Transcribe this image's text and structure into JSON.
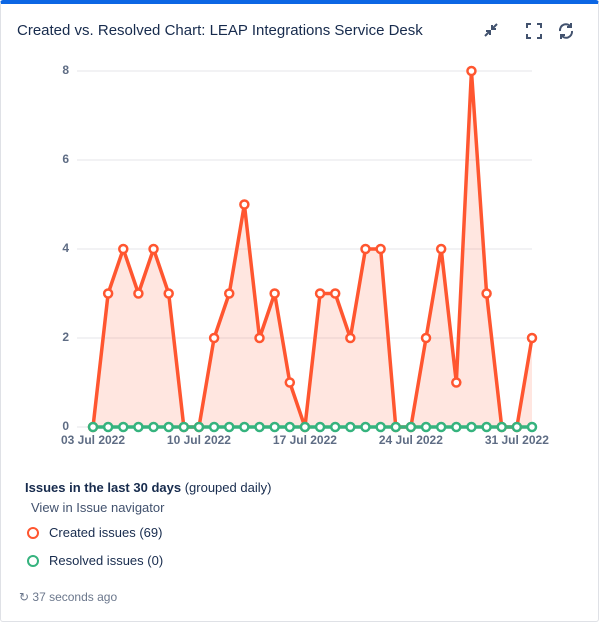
{
  "chart_data": {
    "type": "line",
    "title": "Created vs. Resolved Chart: LEAP Integrations Service Desk",
    "categories": [
      "03 Jul 2022",
      null,
      null,
      null,
      null,
      null,
      null,
      "10 Jul 2022",
      null,
      null,
      null,
      null,
      null,
      null,
      "17 Jul 2022",
      null,
      null,
      null,
      null,
      null,
      null,
      "24 Jul 2022",
      null,
      null,
      null,
      null,
      null,
      null,
      "31 Jul 2022",
      null
    ],
    "series": [
      {
        "name": "Created issues (69)",
        "color": "#ff5630",
        "values": [
          0,
          3,
          4,
          3,
          4,
          3,
          0,
          0,
          2,
          3,
          5,
          2,
          3,
          1,
          0,
          3,
          3,
          2,
          4,
          4,
          0,
          0,
          2,
          4,
          1,
          8,
          3,
          0,
          0,
          2
        ]
      },
      {
        "name": "Resolved issues (0)",
        "color": "#36b37e",
        "values": [
          0,
          0,
          0,
          0,
          0,
          0,
          0,
          0,
          0,
          0,
          0,
          0,
          0,
          0,
          0,
          0,
          0,
          0,
          0,
          0,
          0,
          0,
          0,
          0,
          0,
          0,
          0,
          0,
          0,
          0
        ]
      }
    ],
    "ylim": [
      0,
      8
    ],
    "yticks": [
      0,
      2,
      4,
      6,
      8
    ],
    "grid": true,
    "summary_title": "Issues in the last 30 days",
    "summary_note": "(grouped daily)",
    "link": "View in Issue navigator",
    "updated": "37 seconds ago"
  }
}
